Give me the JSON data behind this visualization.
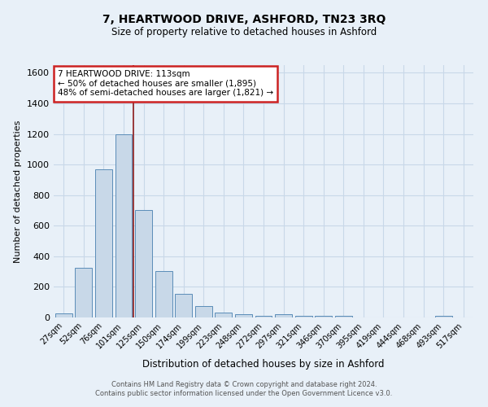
{
  "title": "7, HEARTWOOD DRIVE, ASHFORD, TN23 3RQ",
  "subtitle": "Size of property relative to detached houses in Ashford",
  "xlabel": "Distribution of detached houses by size in Ashford",
  "ylabel": "Number of detached properties",
  "footer_line1": "Contains HM Land Registry data © Crown copyright and database right 2024.",
  "footer_line2": "Contains public sector information licensed under the Open Government Licence v3.0.",
  "bar_labels": [
    "27sqm",
    "52sqm",
    "76sqm",
    "101sqm",
    "125sqm",
    "150sqm",
    "174sqm",
    "199sqm",
    "223sqm",
    "248sqm",
    "272sqm",
    "297sqm",
    "321sqm",
    "346sqm",
    "370sqm",
    "395sqm",
    "419sqm",
    "444sqm",
    "468sqm",
    "493sqm",
    "517sqm"
  ],
  "bar_values": [
    25,
    325,
    970,
    1200,
    700,
    305,
    155,
    75,
    30,
    20,
    12,
    20,
    10,
    12,
    10,
    0,
    0,
    0,
    0,
    10,
    0
  ],
  "bar_color": "#c8d8e8",
  "bar_edge_color": "#5b8db8",
  "grid_color": "#c8d8e8",
  "bg_color": "#e8f0f8",
  "vline_color": "#8b1a1a",
  "annotation_text": "7 HEARTWOOD DRIVE: 113sqm\n← 50% of detached houses are smaller (1,895)\n48% of semi-detached houses are larger (1,821) →",
  "annotation_box_color": "#ffffff",
  "annotation_box_edge_color": "#cc2222",
  "ylim": [
    0,
    1650
  ],
  "yticks": [
    0,
    200,
    400,
    600,
    800,
    1000,
    1200,
    1400,
    1600
  ]
}
